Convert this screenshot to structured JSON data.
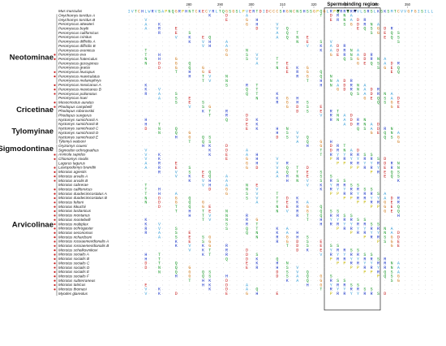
{
  "figure": {
    "region_label": "Sperm-binding region",
    "ticks": [
      "280",
      "290",
      "300",
      "310",
      "320",
      "330",
      "340",
      "350"
    ],
    "reference_sequence": "IVTCHLWRVSAPNQGRPHNTCKECYRLTQGSGSLPVERTDIDCCCSHGNCNSHSSGPQGLRPQRRSRKVLSRSLKSKSMTCVVGFGISILL",
    "groups": [
      "Neotominae",
      "Cricetinae",
      "Tylomyinae",
      "Sigmodontinae",
      "Arvicolinae"
    ],
    "species": [
      "Mus musculus",
      "Onychomys torridus A",
      "Onychomys torridus B",
      "Peromyscus attwateri",
      "Peromyscus boylii",
      "Peromyscus californicus",
      "Peromyscus crinitus",
      "Peromyscus difficilis A",
      "Peromyscus difficilis B",
      "Peromyscus eremicus",
      "Peromyscus eva",
      "Peromyscus fraterculus",
      "Peromyscus gossypinus",
      "Peromyscus gratus",
      "Peromyscus leucopus",
      "Peromyscus maniculatus",
      "Peromyscus melanophrys",
      "Peromyscus mexicanus A",
      "Peromyscus mexicanus B",
      "Peromyscus polionotus",
      "Peromyscus truei",
      "Mesocricetus auratus",
      "Phodopus campbelli",
      "Phodopus roborovskii",
      "Phodopus sungorus",
      "Nyctomys sumichrasti A",
      "Nyctomys sumichrasti B",
      "Nyctomys sumichrasti C",
      "Nyctomys sumichrasti D",
      "Nyctomys sumichrasti E",
      "Tylomys watsoni",
      "Oryzomys couesi",
      "Sigmodon ochrognathus",
      "Arvicola sapidus",
      "Chionomys nivalis",
      "Lagurus lagurus",
      "Lasiopodomys brandtii",
      "Microtus agrestis",
      "Microtus arvalis A",
      "Microtus arvalis B",
      "Microtus cabrerae",
      "Microtus californicus",
      "Microtus duodecimcostatus A",
      "Microtus duodecimcostatus B",
      "Microtus felteni",
      "Microtus kikuchii",
      "Microtus lusitanicus",
      "Microtus montanus",
      "Microtus montebelli",
      "Microtus multiplex",
      "Microtus ochrogaster",
      "Microtus oeconomus",
      "Microtus richardsoni",
      "Microtus rossiaemeridionalis A",
      "Microtus rossiaemeridionalis B",
      "Microtus schelkovnikovi",
      "Microtus socialis A",
      "Microtus socialis B",
      "Microtus socialis C",
      "Microtus socialis D",
      "Microtus socialis E",
      "Microtus socialis F",
      "Microtus subterraneus",
      "Microtus tatricus",
      "Microtus thomasi",
      "Myodes glareolus"
    ],
    "colors": {
      "R": "#1a35c8",
      "K": "#1a35c8",
      "H": "#1a35c8",
      "D": "#c81a1a",
      "E": "#c81a1a",
      "S": "#1a9a2a",
      "T": "#1a9a2a",
      "N": "#1a9a2a",
      "Q": "#1a9a2a",
      "C": "#d27a18",
      "G": "#d27a18",
      "P": "#c8b800",
      "hydrophobic": "#39a0d8",
      "gap": "#888888"
    }
  }
}
